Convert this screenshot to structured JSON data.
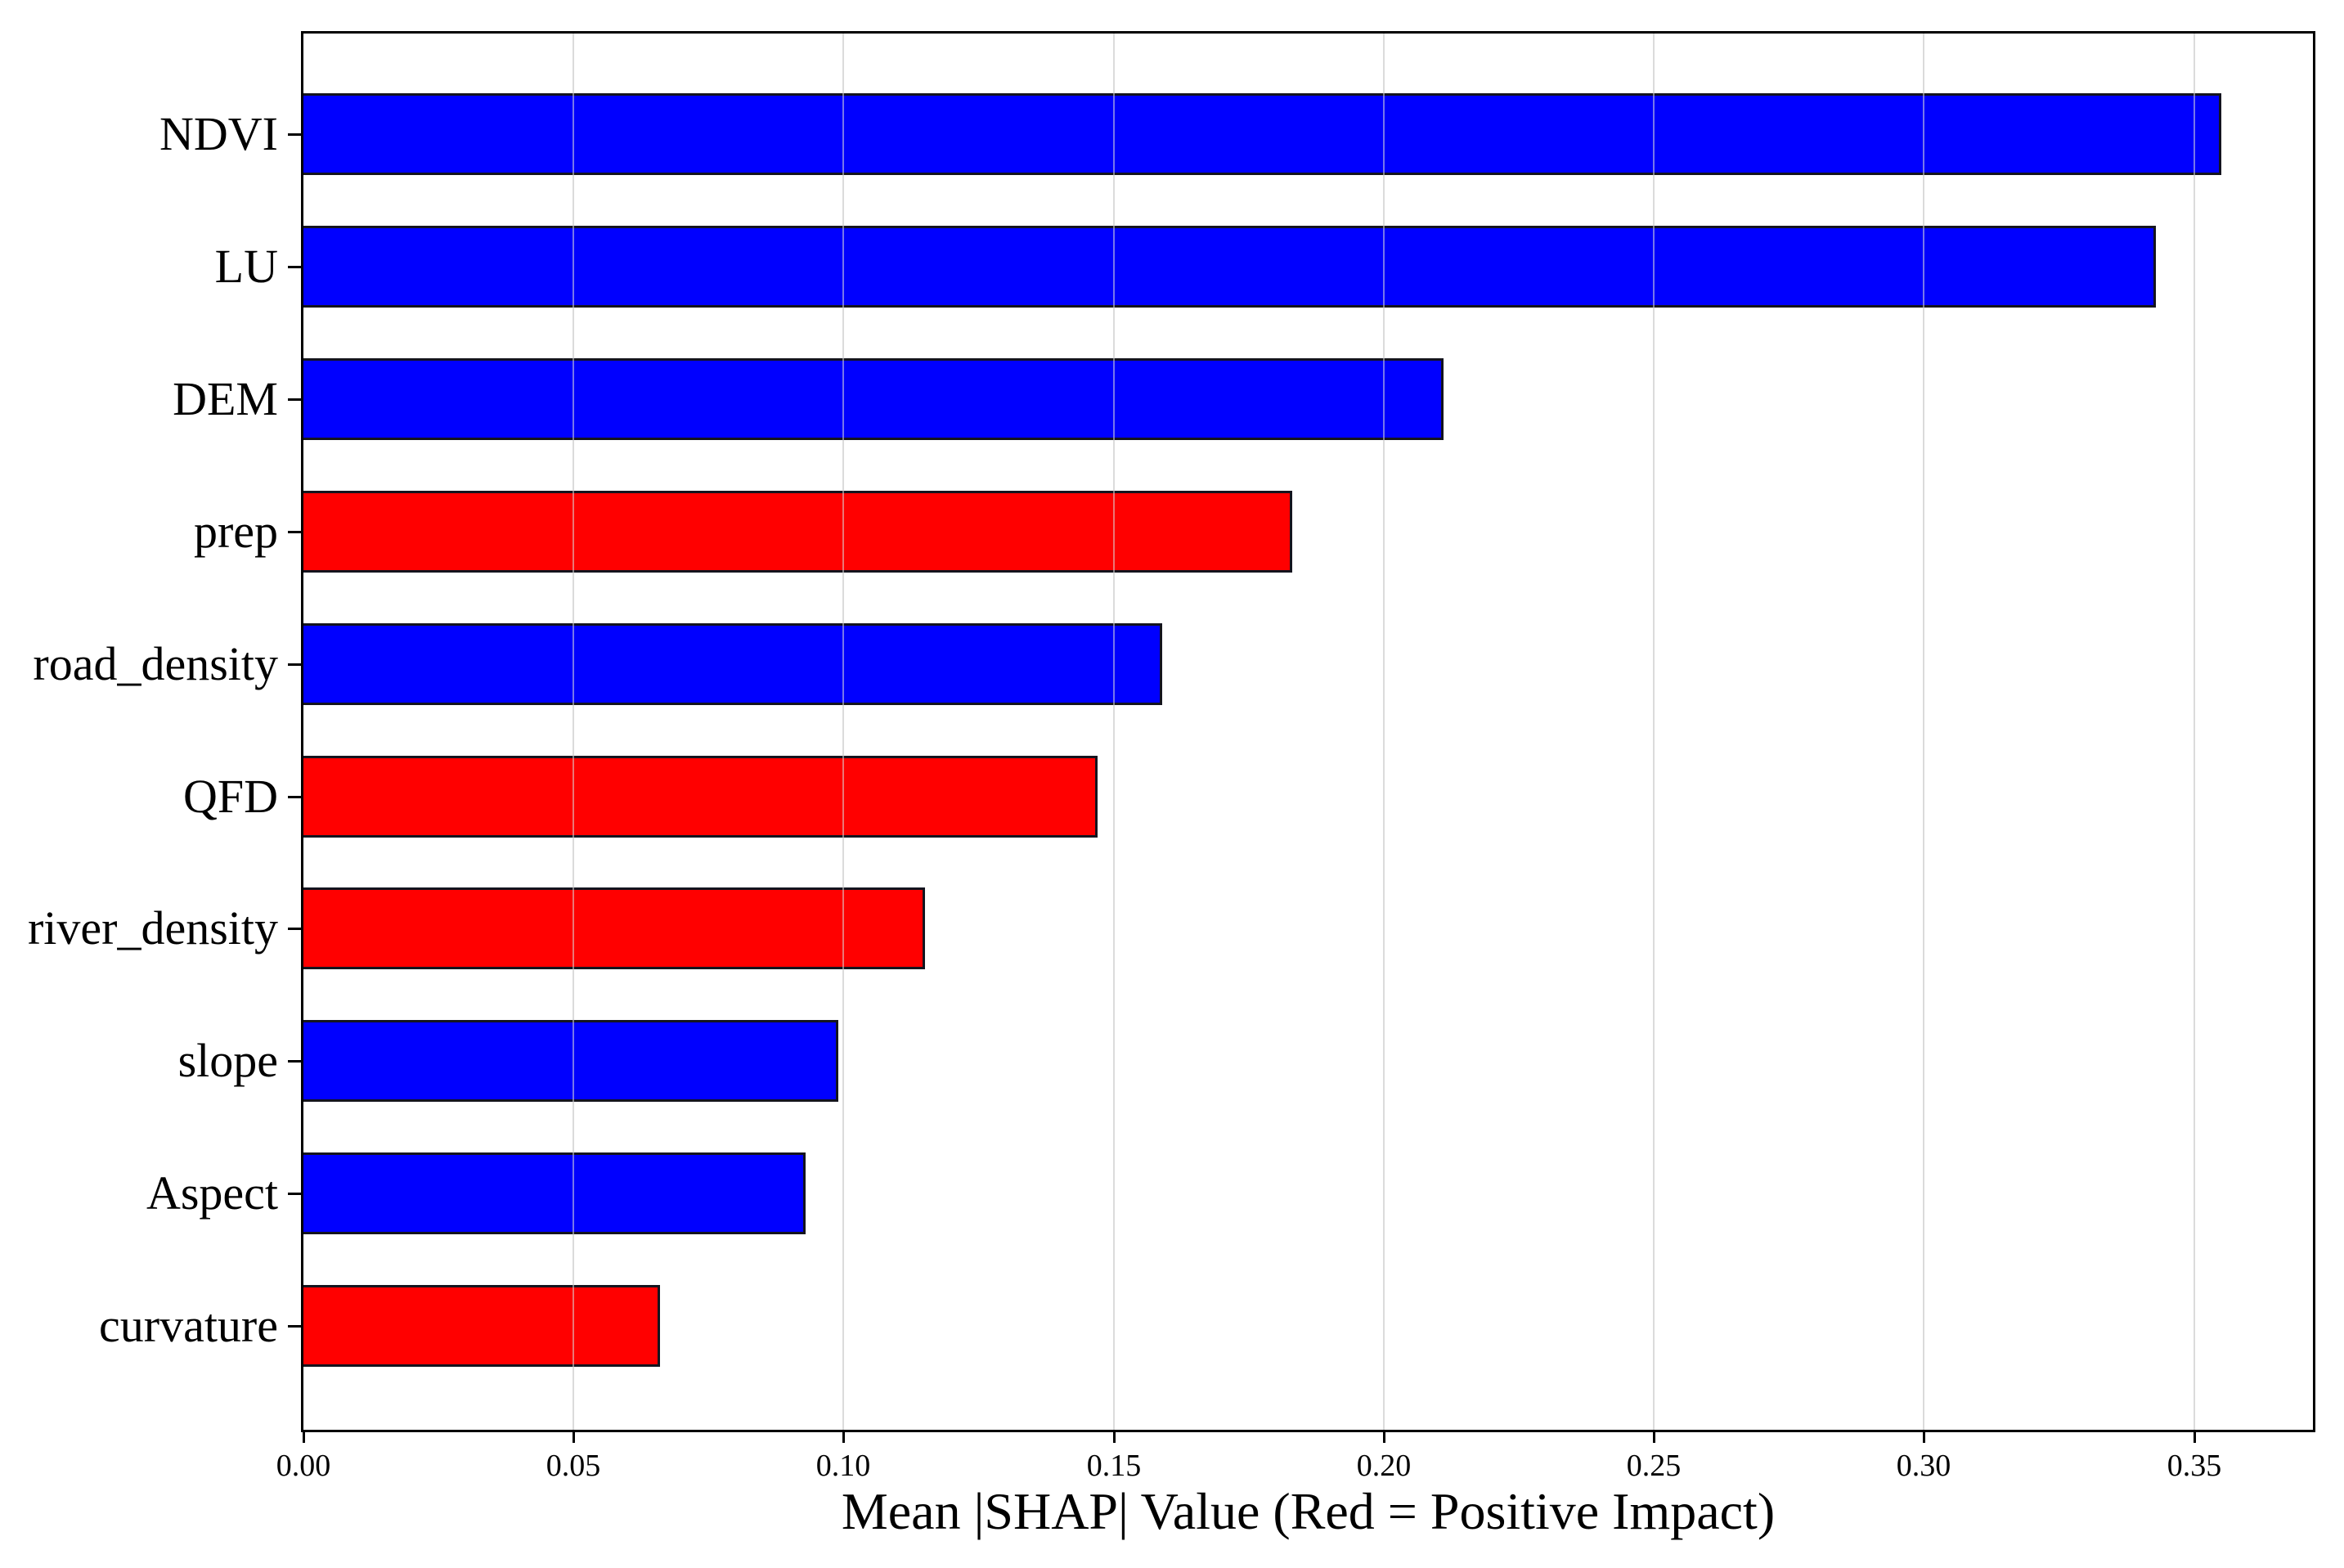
{
  "chart_data": {
    "type": "bar",
    "orientation": "horizontal",
    "title": "",
    "xlabel": "Mean |SHAP| Value (Red = Positive Impact)",
    "ylabel": "",
    "categories": [
      "NDVI",
      "LU",
      "DEM",
      "prep",
      "road_density",
      "QFD",
      "river_density",
      "slope",
      "Aspect",
      "curvature"
    ],
    "values": [
      0.355,
      0.343,
      0.211,
      0.183,
      0.159,
      0.147,
      0.115,
      0.099,
      0.093,
      0.066
    ],
    "bar_colors": [
      "#0000ff",
      "#0000ff",
      "#0000ff",
      "#ff0000",
      "#0000ff",
      "#ff0000",
      "#ff0000",
      "#0000ff",
      "#0000ff",
      "#ff0000"
    ],
    "positive_color": "#ff0000",
    "negative_color": "#0000ff",
    "bar_edge_color": "#000000",
    "xlim": [
      0,
      0.372
    ],
    "xticks": [
      0.0,
      0.05,
      0.1,
      0.15,
      0.2,
      0.25,
      0.3,
      0.35
    ],
    "xtick_labels": [
      "0.00",
      "0.05",
      "0.10",
      "0.15",
      "0.20",
      "0.25",
      "0.30",
      "0.35"
    ],
    "grid": "vertical",
    "legend_position": "none"
  }
}
